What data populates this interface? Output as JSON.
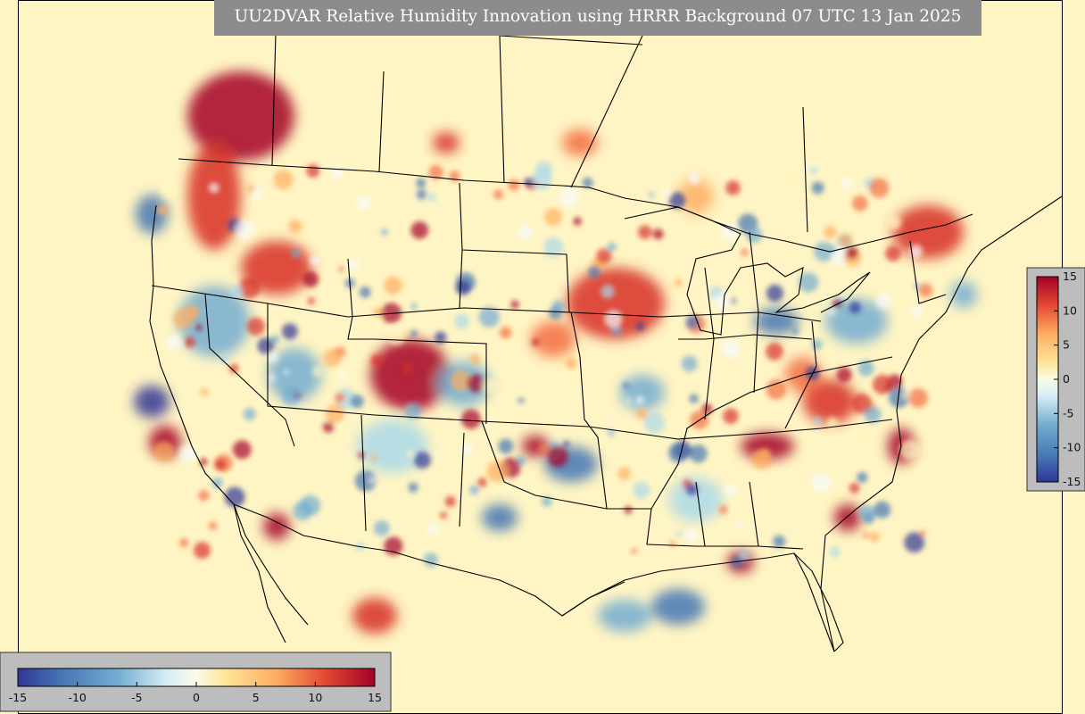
{
  "title": "UU2DVAR Relative Humidity Innovation using HRRR Background 07 UTC 13 Jan 2025",
  "colorbar": {
    "min": -15,
    "max": 15,
    "tick_labels": [
      "-15",
      "-10",
      "-5",
      "0",
      "5",
      "10",
      "15"
    ],
    "tick_values": [
      -15,
      -10,
      -5,
      0,
      5,
      10,
      15
    ],
    "colors": [
      "#313695",
      "#4575b4",
      "#74add1",
      "#abd9e9",
      "#f7fbff",
      "#fff6c0",
      "#fdae61",
      "#f46d43",
      "#d73027",
      "#a50026"
    ]
  },
  "colors": {
    "background_field": "#fff5c4",
    "title_box": "#8c8c8c",
    "colorbar_panel": "#bdbdbd",
    "boundary_lines": "#000000"
  }
}
